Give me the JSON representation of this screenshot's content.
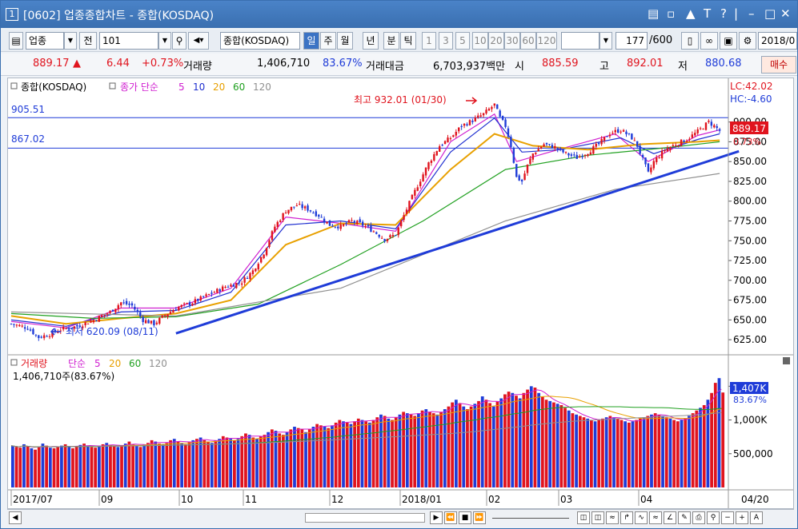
{
  "window": {
    "tab_number": "1",
    "title": "[0602] 업종종합차트 - 종합(KOSDAQ)",
    "controls": [
      "minimize-icon",
      "restore-icon",
      "pin-icon",
      "font-icon",
      "help-icon",
      "min-icon",
      "max-icon",
      "close-icon"
    ]
  },
  "toolbar": {
    "category": "업종",
    "before_label": "전",
    "code": "101",
    "name": "종합(KOSDAQ)",
    "periods": [
      "일",
      "주",
      "월",
      "년",
      "분",
      "틱"
    ],
    "active_period": "일",
    "intervals": [
      "1",
      "3",
      "5",
      "10",
      "20",
      "30",
      "60",
      "120"
    ],
    "count": "177",
    "total": "/600",
    "date": "2018/0"
  },
  "quote": {
    "price": "889.17",
    "arrow": "▲",
    "change": "6.44",
    "change_pct": "+0.73%",
    "volume_label": "거래량",
    "volume": "1,406,710",
    "volume_pct": "83.67%",
    "amount_label": "거래대금",
    "amount": "6,703,937백만",
    "open_label": "시",
    "open": "885.59",
    "high_label": "고",
    "high": "892.01",
    "low_label": "저",
    "low": "880.68",
    "buy_label": "매수"
  },
  "price_panel": {
    "legend_name": "종합(KOSDAQ)",
    "legend_ma_label": "종가 단순",
    "ma_periods": [
      "5",
      "10",
      "20",
      "60",
      "120"
    ],
    "ma_colors": [
      "#d020d0",
      "#2030d0",
      "#e8a000",
      "#20a020",
      "#909090"
    ],
    "lc_label": "LC:42.02",
    "hc_label": "HC:-4.60",
    "hline_labels": [
      "905.51",
      "867.02"
    ],
    "high_annotation": "최고 932.01 (01/30)",
    "low_annotation": "최저 620.09 (08/11)",
    "current_tag": "889.17",
    "current_pct": "0.73%",
    "y_ticks": [
      "900.00",
      "875.00",
      "850.00",
      "825.00",
      "800.00",
      "775.00",
      "750.00",
      "725.00",
      "700.00",
      "675.00",
      "650.00",
      "625.00"
    ]
  },
  "volume_panel": {
    "legend_label": "거래량",
    "legend_ma_label": "단순",
    "ma_periods": [
      "5",
      "20",
      "60",
      "120"
    ],
    "sub_label": "1,406,710주(83.67%)",
    "current_tag": "1,407K",
    "current_pct": "83.67%",
    "y_ticks": [
      "1,500K",
      "1,000K",
      "500,000"
    ]
  },
  "x_axis": [
    "2017/07",
    "09",
    "10",
    "11",
    "12",
    "2018/01",
    "02",
    "03",
    "04",
    "04/20"
  ],
  "chart_data": {
    "type": "candlestick",
    "title": "종합(KOSDAQ)",
    "ylim": [
      612,
      935
    ],
    "y_ticks": [
      625,
      650,
      675,
      700,
      725,
      750,
      775,
      800,
      825,
      850,
      875,
      900
    ],
    "hlines": [
      905.51,
      867.02
    ],
    "current": 889.17,
    "highest": {
      "value": 932.01,
      "date": "01/30"
    },
    "lowest": {
      "value": 620.09,
      "date": "08/11"
    },
    "close_series": {
      "name": "종합(KOSDAQ)",
      "points": [
        [
          0,
          645
        ],
        [
          6,
          640
        ],
        [
          10,
          628
        ],
        [
          14,
          632
        ],
        [
          18,
          638
        ],
        [
          24,
          642
        ],
        [
          30,
          650
        ],
        [
          36,
          660
        ],
        [
          40,
          672
        ],
        [
          44,
          668
        ],
        [
          48,
          650
        ],
        [
          52,
          645
        ],
        [
          56,
          656
        ],
        [
          60,
          665
        ],
        [
          66,
          672
        ],
        [
          72,
          682
        ],
        [
          78,
          692
        ],
        [
          84,
          698
        ],
        [
          88,
          712
        ],
        [
          92,
          735
        ],
        [
          96,
          768
        ],
        [
          100,
          788
        ],
        [
          104,
          795
        ],
        [
          108,
          790
        ],
        [
          112,
          782
        ],
        [
          116,
          770
        ],
        [
          120,
          768
        ],
        [
          124,
          775
        ],
        [
          128,
          770
        ],
        [
          132,
          762
        ],
        [
          136,
          752
        ],
        [
          140,
          758
        ],
        [
          144,
          790
        ],
        [
          148,
          820
        ],
        [
          152,
          848
        ],
        [
          156,
          870
        ],
        [
          160,
          880
        ],
        [
          164,
          895
        ],
        [
          168,
          902
        ],
        [
          172,
          910
        ],
        [
          176,
          922
        ],
        [
          178,
          905
        ],
        [
          180,
          895
        ],
        [
          182,
          870
        ],
        [
          184,
          830
        ],
        [
          186,
          825
        ],
        [
          188,
          845
        ],
        [
          190,
          860
        ],
        [
          194,
          872
        ],
        [
          198,
          868
        ],
        [
          202,
          860
        ],
        [
          206,
          855
        ],
        [
          210,
          862
        ],
        [
          214,
          872
        ],
        [
          218,
          886
        ],
        [
          222,
          890
        ],
        [
          224,
          885
        ],
        [
          226,
          880
        ],
        [
          228,
          870
        ],
        [
          232,
          835
        ],
        [
          234,
          850
        ],
        [
          238,
          865
        ],
        [
          242,
          872
        ],
        [
          246,
          878
        ],
        [
          250,
          888
        ],
        [
          254,
          900
        ],
        [
          256,
          895
        ],
        [
          258,
          889
        ]
      ]
    },
    "ma_series": [
      {
        "name": "5",
        "points": [
          [
            0,
            648
          ],
          [
            20,
            640
          ],
          [
            40,
            665
          ],
          [
            60,
            665
          ],
          [
            80,
            690
          ],
          [
            100,
            780
          ],
          [
            120,
            772
          ],
          [
            140,
            762
          ],
          [
            160,
            875
          ],
          [
            176,
            910
          ],
          [
            184,
            850
          ],
          [
            200,
            866
          ],
          [
            220,
            885
          ],
          [
            232,
            850
          ],
          [
            250,
            883
          ],
          [
            258,
            890
          ]
        ]
      },
      {
        "name": "10",
        "points": [
          [
            0,
            650
          ],
          [
            20,
            642
          ],
          [
            40,
            660
          ],
          [
            60,
            662
          ],
          [
            80,
            685
          ],
          [
            100,
            770
          ],
          [
            120,
            775
          ],
          [
            140,
            765
          ],
          [
            160,
            862
          ],
          [
            176,
            905
          ],
          [
            186,
            862
          ],
          [
            200,
            865
          ],
          [
            222,
            880
          ],
          [
            234,
            860
          ],
          [
            250,
            878
          ],
          [
            258,
            885
          ]
        ]
      },
      {
        "name": "20",
        "points": [
          [
            0,
            655
          ],
          [
            20,
            645
          ],
          [
            40,
            652
          ],
          [
            60,
            658
          ],
          [
            80,
            675
          ],
          [
            100,
            745
          ],
          [
            120,
            772
          ],
          [
            140,
            770
          ],
          [
            160,
            840
          ],
          [
            176,
            885
          ],
          [
            190,
            870
          ],
          [
            210,
            865
          ],
          [
            230,
            872
          ],
          [
            250,
            875
          ],
          [
            258,
            877
          ]
        ]
      },
      {
        "name": "60",
        "points": [
          [
            0,
            658
          ],
          [
            30,
            652
          ],
          [
            60,
            654
          ],
          [
            90,
            670
          ],
          [
            120,
            720
          ],
          [
            150,
            775
          ],
          [
            180,
            840
          ],
          [
            210,
            858
          ],
          [
            240,
            868
          ],
          [
            258,
            875
          ]
        ]
      },
      {
        "name": "120",
        "points": [
          [
            0,
            660
          ],
          [
            60,
            655
          ],
          [
            120,
            690
          ],
          [
            180,
            775
          ],
          [
            220,
            815
          ],
          [
            258,
            835
          ]
        ]
      }
    ],
    "trendline": {
      "from": [
        60,
        633
      ],
      "to": [
        265,
        863
      ]
    },
    "volume": {
      "ylim": [
        0,
        1800
      ],
      "y_ticks": [
        500,
        1000,
        1500
      ],
      "unit": "K",
      "current": 1407,
      "bars": [
        620,
        600,
        590,
        640,
        610,
        580,
        560,
        600,
        650,
        620,
        590,
        580,
        600,
        620,
        640,
        600,
        580,
        610,
        630,
        650,
        620,
        600,
        590,
        620,
        640,
        660,
        630,
        610,
        600,
        620,
        650,
        680,
        640,
        620,
        600,
        640,
        660,
        700,
        680,
        650,
        640,
        660,
        700,
        720,
        680,
        660,
        640,
        680,
        700,
        720,
        740,
        700,
        680,
        660,
        700,
        720,
        760,
        740,
        720,
        700,
        720,
        760,
        800,
        780,
        740,
        720,
        760,
        780,
        820,
        860,
        840,
        800,
        780,
        820,
        860,
        900,
        880,
        860,
        820,
        860,
        900,
        940,
        920,
        900,
        880,
        920,
        960,
        1000,
        980,
        960,
        940,
        980,
        1020,
        1000,
        980,
        960,
        1000,
        1040,
        1080,
        1060,
        1020,
        1000,
        1040,
        1080,
        1120,
        1100,
        1080,
        1060,
        1100,
        1140,
        1160,
        1120,
        1100,
        1080,
        1120,
        1160,
        1200,
        1260,
        1300,
        1250,
        1200,
        1160,
        1200,
        1240,
        1280,
        1350,
        1300,
        1250,
        1200,
        1280,
        1320,
        1380,
        1420,
        1400,
        1360,
        1320,
        1400,
        1450,
        1500,
        1480,
        1400,
        1350,
        1300,
        1280,
        1260,
        1240,
        1220,
        1180,
        1140,
        1100,
        1080,
        1060,
        1040,
        1020,
        1000,
        980,
        1000,
        1020,
        1040,
        1060,
        1040,
        1020,
        1000,
        980,
        960,
        980,
        1000,
        1020,
        1040,
        1060,
        1080,
        1100,
        1080,
        1060,
        1040,
        1020,
        1000,
        980,
        1000,
        1020,
        1060,
        1100,
        1140,
        1180,
        1220,
        1300,
        1400,
        1550,
        1620,
        1407
      ]
    }
  }
}
